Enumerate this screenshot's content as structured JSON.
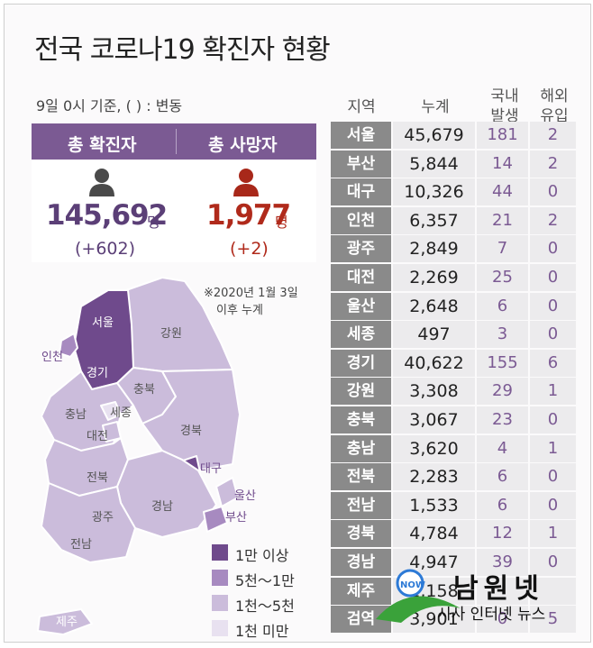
{
  "title": "전국 코로나19 확진자 현황",
  "basis": "9일 0시 기준, ( ) : 변동",
  "summary": {
    "confirmed_label": "총 확진자",
    "deaths_label": "총 사망자",
    "confirmed_value": "145,692",
    "confirmed_unit": "명",
    "confirmed_delta": "(+602)",
    "deaths_value": "1,977",
    "deaths_unit": "명",
    "deaths_delta": "(+2)"
  },
  "note_lines": [
    "※2020년 1월 3일",
    "이후 누계"
  ],
  "legend": [
    {
      "label": "1만 이상",
      "color": "#6f4a8c"
    },
    {
      "label": "5천～1만",
      "color": "#a78ac0"
    },
    {
      "label": "1천～5천",
      "color": "#cbbcdb"
    },
    {
      "label": "1천 미만",
      "color": "#e8e1f0"
    }
  ],
  "map_labels": {
    "seoul": "서울",
    "incheon": "인천",
    "gyeonggi": "경기",
    "gangwon": "강원",
    "chungbuk": "충북",
    "chungnam": "충남",
    "sejong": "세종",
    "daejeon": "대전",
    "gyeongbuk": "경북",
    "daegu": "대구",
    "jeonbuk": "전북",
    "gyeongnam": "경남",
    "ulsan": "울산",
    "busan": "부산",
    "gwangju": "광주",
    "jeonnam": "전남",
    "jeju": "제주"
  },
  "table_headers": {
    "region": "지역",
    "cumulative": "누계",
    "domestic_1": "국내",
    "domestic_2": "발생",
    "imported_1": "해외",
    "imported_2": "유입"
  },
  "chart_data": {
    "type": "table",
    "title": "전국 코로나19 확진자 현황",
    "columns": [
      "지역",
      "누계",
      "국내 발생",
      "해외 유입"
    ],
    "rows": [
      {
        "region": "서울",
        "cumulative": "45,679",
        "domestic": "181",
        "imported": "2"
      },
      {
        "region": "부산",
        "cumulative": "5,844",
        "domestic": "14",
        "imported": "2"
      },
      {
        "region": "대구",
        "cumulative": "10,326",
        "domestic": "44",
        "imported": "0"
      },
      {
        "region": "인천",
        "cumulative": "6,357",
        "domestic": "21",
        "imported": "2"
      },
      {
        "region": "광주",
        "cumulative": "2,849",
        "domestic": "7",
        "imported": "0"
      },
      {
        "region": "대전",
        "cumulative": "2,269",
        "domestic": "25",
        "imported": "0"
      },
      {
        "region": "울산",
        "cumulative": "2,648",
        "domestic": "6",
        "imported": "0"
      },
      {
        "region": "세종",
        "cumulative": "497",
        "domestic": "3",
        "imported": "0"
      },
      {
        "region": "경기",
        "cumulative": "40,622",
        "domestic": "155",
        "imported": "6"
      },
      {
        "region": "강원",
        "cumulative": "3,308",
        "domestic": "29",
        "imported": "1"
      },
      {
        "region": "충북",
        "cumulative": "3,067",
        "domestic": "23",
        "imported": "0"
      },
      {
        "region": "충남",
        "cumulative": "3,620",
        "domestic": "4",
        "imported": "1"
      },
      {
        "region": "전북",
        "cumulative": "2,283",
        "domestic": "6",
        "imported": "0"
      },
      {
        "region": "전남",
        "cumulative": "1,533",
        "domestic": "6",
        "imported": "0"
      },
      {
        "region": "경북",
        "cumulative": "4,784",
        "domestic": "12",
        "imported": "1"
      },
      {
        "region": "경남",
        "cumulative": "4,947",
        "domestic": "39",
        "imported": "0"
      },
      {
        "region": "제주",
        "cumulative": "1,158",
        "domestic": "",
        "imported": ""
      },
      {
        "region": "검역",
        "cumulative": "3,901",
        "domestic": "0",
        "imported": "5"
      }
    ]
  },
  "watermark": {
    "name": "남원넷",
    "tagline": "시사 인터넷 뉴스",
    "badge": "NOW"
  }
}
